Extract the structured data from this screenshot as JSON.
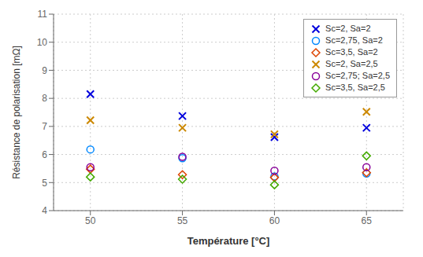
{
  "chart_data": {
    "type": "scatter",
    "title": "",
    "xlabel": "Température [°C]",
    "ylabel": "Résistance de polarisation [mΩ]",
    "xlim": [
      48,
      67
    ],
    "ylim": [
      4,
      11
    ],
    "xticks": [
      50,
      55,
      60,
      65
    ],
    "yticks": [
      4,
      5,
      6,
      7,
      8,
      9,
      10,
      11
    ],
    "grid": true,
    "legend": "upper right",
    "series": [
      {
        "name": "Sc=2, Sa=2",
        "marker": "x",
        "color": "#0000dd",
        "x": [
          50,
          55,
          60,
          65
        ],
        "values": [
          8.15,
          7.37,
          6.62,
          6.95
        ]
      },
      {
        "name": "Sc=2,75, Sa=2",
        "marker": "circle",
        "color": "#0088ff",
        "x": [
          50,
          55,
          60,
          65
        ],
        "values": [
          6.18,
          5.87,
          5.22,
          5.32
        ]
      },
      {
        "name": "Sc=3,5, Sa=2",
        "marker": "diamond",
        "color": "#dd4400",
        "x": [
          50,
          55,
          60,
          65
        ],
        "values": [
          5.48,
          5.28,
          5.18,
          5.35
        ]
      },
      {
        "name": "Sc=2, Sa=2,5",
        "marker": "x",
        "color": "#cc8800",
        "x": [
          50,
          55,
          60,
          65
        ],
        "values": [
          7.22,
          6.95,
          6.72,
          7.52
        ]
      },
      {
        "name": "Sc=2,75; Sa=2,5",
        "marker": "circle",
        "color": "#880099",
        "x": [
          50,
          55,
          60,
          65
        ],
        "values": [
          5.55,
          5.92,
          5.42,
          5.55
        ]
      },
      {
        "name": "Sc=3,5, Sa=2,5",
        "marker": "diamond",
        "color": "#44aa00",
        "x": [
          50,
          55,
          60,
          65
        ],
        "values": [
          5.2,
          5.12,
          4.92,
          5.95
        ]
      }
    ]
  }
}
